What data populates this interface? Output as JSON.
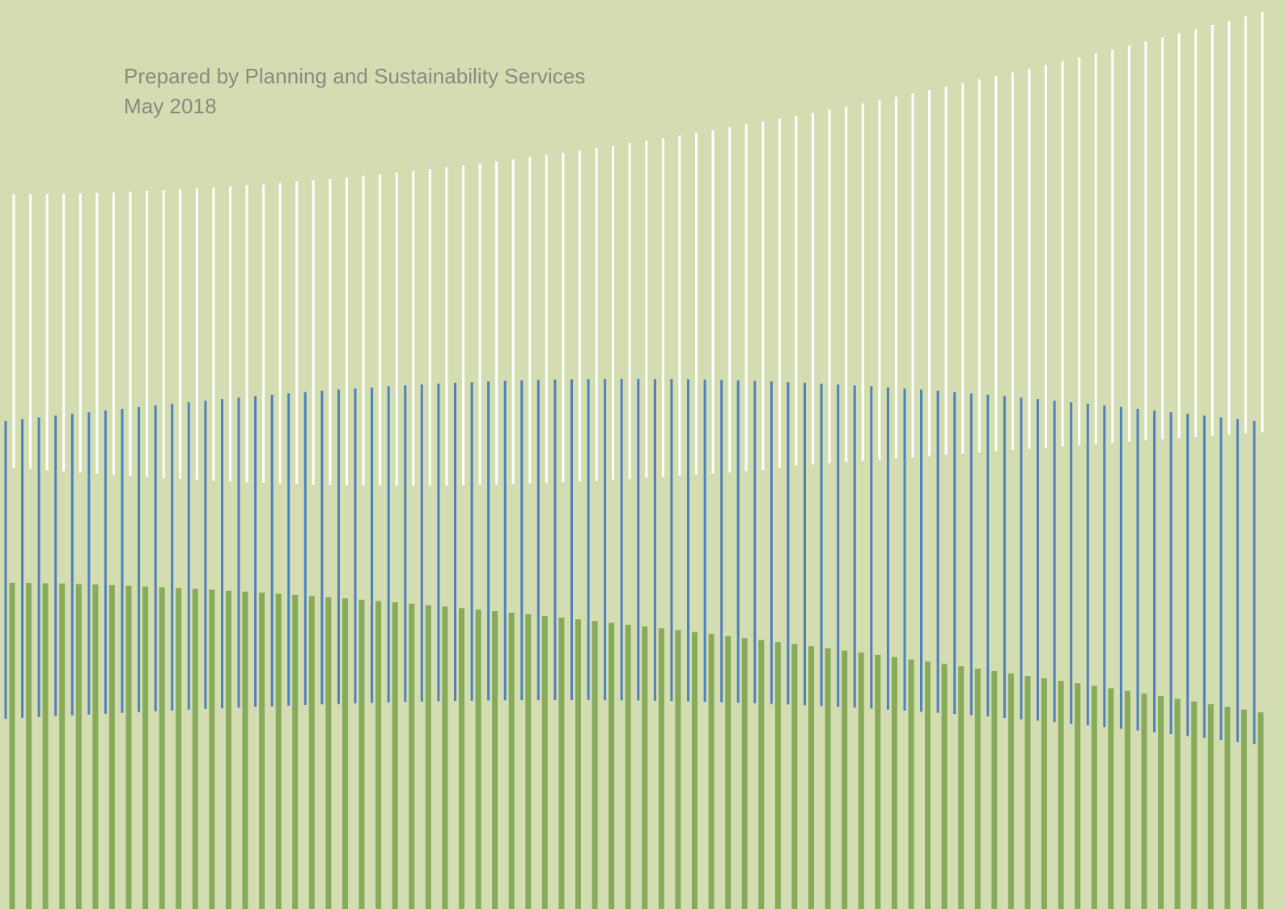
{
  "cover": {
    "prepared_by": "Prepared by Planning and Sustainability Services",
    "date": "May 2018"
  },
  "pattern": {
    "colors": {
      "background": "#d4ddb1",
      "white_line": "#ffffff",
      "blue_line": "#4f81bd",
      "green_bar": "#88aa5b"
    },
    "line_count": 76
  }
}
